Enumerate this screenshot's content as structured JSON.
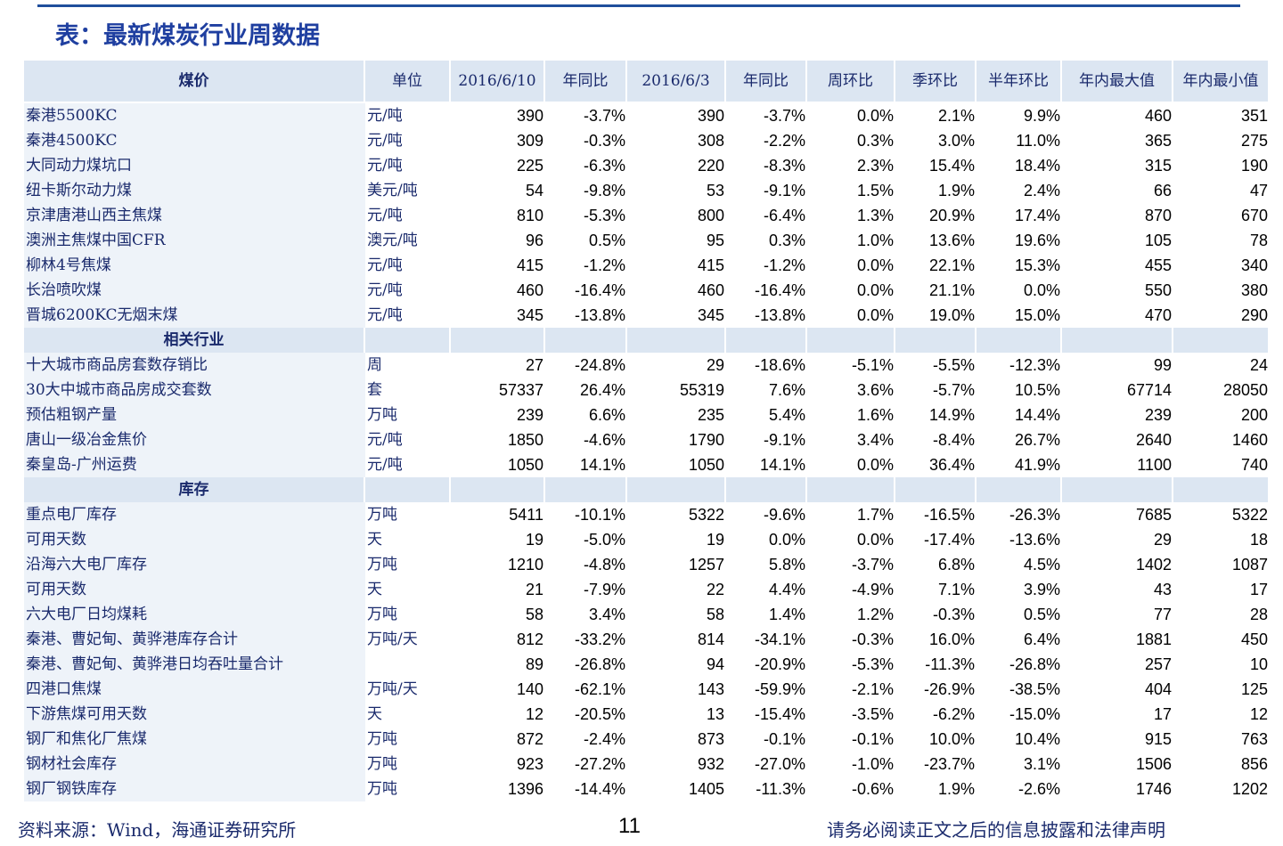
{
  "title": "表：最新煤炭行业周数据",
  "table": {
    "header": [
      "煤价",
      "单位",
      "2016/6/10",
      "年同比",
      "2016/6/3",
      "年同比",
      "周环比",
      "季环比",
      "半年环比",
      "年内最大值",
      "年内最小值"
    ],
    "rows": [
      [
        "秦港5500KC",
        "元/吨",
        "390",
        "-3.7%",
        "390",
        "-3.7%",
        "0.0%",
        "2.1%",
        "9.9%",
        "460",
        "351"
      ],
      [
        "秦港4500KC",
        "元/吨",
        "309",
        "-0.3%",
        "308",
        "-2.2%",
        "0.3%",
        "3.0%",
        "11.0%",
        "365",
        "275"
      ],
      [
        "大同动力煤坑口",
        "元/吨",
        "225",
        "-6.3%",
        "220",
        "-8.3%",
        "2.3%",
        "15.4%",
        "18.4%",
        "315",
        "190"
      ],
      [
        "纽卡斯尔动力煤",
        "美元/吨",
        "54",
        "-9.8%",
        "53",
        "-9.1%",
        "1.5%",
        "1.9%",
        "2.4%",
        "66",
        "47"
      ],
      [
        "京津唐港山西主焦煤",
        "元/吨",
        "810",
        "-5.3%",
        "800",
        "-6.4%",
        "1.3%",
        "20.9%",
        "17.4%",
        "870",
        "670"
      ],
      [
        "澳洲主焦煤中国CFR",
        "澳元/吨",
        "96",
        "0.5%",
        "95",
        "0.3%",
        "1.0%",
        "13.6%",
        "19.6%",
        "105",
        "78"
      ],
      [
        "柳林4号焦煤",
        "元/吨",
        "415",
        "-1.2%",
        "415",
        "-1.2%",
        "0.0%",
        "22.1%",
        "15.3%",
        "455",
        "340"
      ],
      [
        "长治喷吹煤",
        "元/吨",
        "460",
        "-16.4%",
        "460",
        "-16.4%",
        "0.0%",
        "21.1%",
        "0.0%",
        "550",
        "380"
      ],
      [
        "晋城6200KC无烟末煤",
        "元/吨",
        "345",
        "-13.8%",
        "345",
        "-13.8%",
        "0.0%",
        "19.0%",
        "15.0%",
        "470",
        "290"
      ],
      [
        "相关行业"
      ],
      [
        "十大城市商品房套数存销比",
        "周",
        "27",
        "-24.8%",
        "29",
        "-18.6%",
        "-5.1%",
        "-5.5%",
        "-12.3%",
        "99",
        "24"
      ],
      [
        "30大中城市商品房成交套数",
        "套",
        "57337",
        "26.4%",
        "55319",
        "7.6%",
        "3.6%",
        "-5.7%",
        "10.5%",
        "67714",
        "28050"
      ],
      [
        "预估粗钢产量",
        "万吨",
        "239",
        "6.6%",
        "235",
        "5.4%",
        "1.6%",
        "14.9%",
        "14.4%",
        "239",
        "200"
      ],
      [
        "唐山一级冶金焦价",
        "元/吨",
        "1850",
        "-4.6%",
        "1790",
        "-9.1%",
        "3.4%",
        "-8.4%",
        "26.7%",
        "2640",
        "1460"
      ],
      [
        "秦皇岛-广州运费",
        "元/吨",
        "1050",
        "14.1%",
        "1050",
        "14.1%",
        "0.0%",
        "36.4%",
        "41.9%",
        "1100",
        "740"
      ],
      [
        "库存"
      ],
      [
        "重点电厂库存",
        "万吨",
        "5411",
        "-10.1%",
        "5322",
        "-9.6%",
        "1.7%",
        "-16.5%",
        "-26.3%",
        "7685",
        "5322"
      ],
      [
        "可用天数",
        "天",
        "19",
        "-5.0%",
        "19",
        "0.0%",
        "0.0%",
        "-17.4%",
        "-13.6%",
        "29",
        "18"
      ],
      [
        "沿海六大电厂库存",
        "万吨",
        "1210",
        "-4.8%",
        "1257",
        "5.8%",
        "-3.7%",
        "6.8%",
        "4.5%",
        "1402",
        "1087"
      ],
      [
        "可用天数",
        "天",
        "21",
        "-7.9%",
        "22",
        "4.4%",
        "-4.9%",
        "7.1%",
        "3.9%",
        "43",
        "17"
      ],
      [
        "六大电厂日均煤耗",
        "万吨",
        "58",
        "3.4%",
        "58",
        "1.4%",
        "1.2%",
        "-0.3%",
        "0.5%",
        "77",
        "28"
      ],
      [
        "秦港、曹妃甸、黄骅港库存合计",
        "万吨/天",
        "812",
        "-33.2%",
        "814",
        "-34.1%",
        "-0.3%",
        "16.0%",
        "6.4%",
        "1881",
        "450"
      ],
      [
        "秦港、曹妃甸、黄骅港日均吞吐量合计",
        null,
        "89",
        "-26.8%",
        "94",
        "-20.9%",
        "-5.3%",
        "-11.3%",
        "-26.8%",
        "257",
        "10"
      ],
      [
        "四港口焦煤",
        "万吨/天",
        "140",
        "-62.1%",
        "143",
        "-59.9%",
        "-2.1%",
        "-26.9%",
        "-38.5%",
        "404",
        "125"
      ],
      [
        "下游焦煤可用天数",
        "天",
        "12",
        "-20.5%",
        "13",
        "-15.4%",
        "-3.5%",
        "-6.2%",
        "-15.0%",
        "17",
        "12"
      ],
      [
        "钢厂和焦化厂焦煤",
        "万吨",
        "872",
        "-2.4%",
        "873",
        "-0.1%",
        "-0.1%",
        "10.0%",
        "10.4%",
        "915",
        "763"
      ],
      [
        "钢材社会库存",
        "万吨",
        "923",
        "-27.2%",
        "932",
        "-27.0%",
        "-1.0%",
        "-23.7%",
        "3.1%",
        "1506",
        "856"
      ],
      [
        "钢厂钢铁库存",
        "万吨",
        "1396",
        "-14.4%",
        "1405",
        "-11.3%",
        "-0.6%",
        "1.9%",
        "-2.6%",
        "1746",
        "1202"
      ]
    ]
  },
  "footer": {
    "source": "资料来源：Wind，海通证券研究所",
    "page": "11",
    "disclaimer": "请务必阅读正文之后的信息披露和法律声明"
  }
}
